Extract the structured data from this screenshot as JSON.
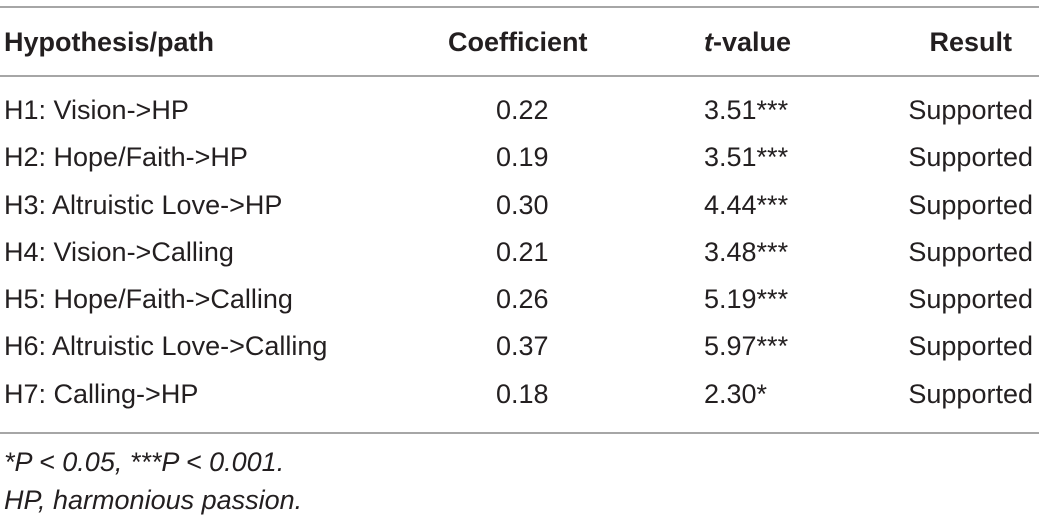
{
  "table": {
    "headers": {
      "path": "Hypothesis/path",
      "coefficient": "Coefficient",
      "t_italic": "t",
      "t_rest": "-value",
      "result": "Result"
    },
    "rows": [
      {
        "path": "H1: Vision->HP",
        "coefficient": "0.22",
        "t_value": "3.51***",
        "result": "Supported"
      },
      {
        "path": "H2: Hope/Faith->HP",
        "coefficient": "0.19",
        "t_value": "3.51***",
        "result": "Supported"
      },
      {
        "path": "H3: Altruistic Love->HP",
        "coefficient": "0.30",
        "t_value": "4.44***",
        "result": "Supported"
      },
      {
        "path": "H4: Vision->Calling",
        "coefficient": "0.21",
        "t_value": "3.48***",
        "result": "Supported"
      },
      {
        "path": "H5: Hope/Faith->Calling",
        "coefficient": "0.26",
        "t_value": "5.19***",
        "result": "Supported"
      },
      {
        "path": "H6: Altruistic Love->Calling",
        "coefficient": "0.37",
        "t_value": "5.97***",
        "result": "Supported"
      },
      {
        "path": "H7: Calling->HP",
        "coefficient": "0.18",
        "t_value": "2.30*",
        "result": "Supported"
      }
    ]
  },
  "footnotes": {
    "significance": "*P < 0.05, ***P < 0.001.",
    "abbreviation": "HP, harmonious passion."
  }
}
